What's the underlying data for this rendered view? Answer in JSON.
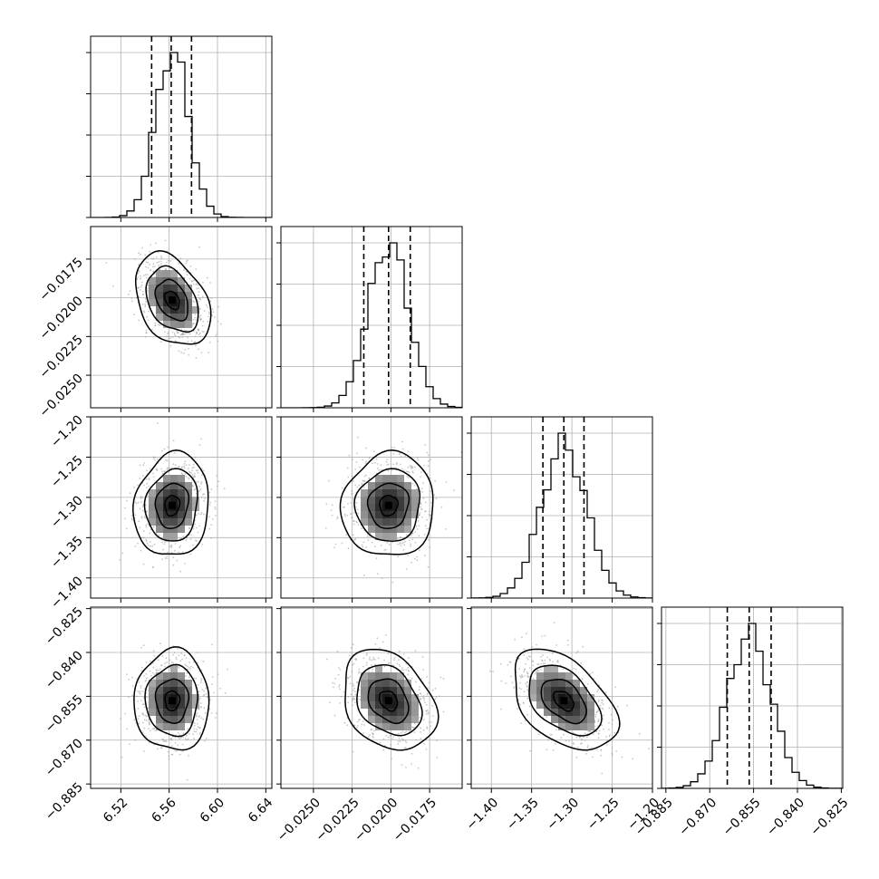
{
  "chart_data": {
    "type": "corner",
    "grid": true,
    "parameters": [
      {
        "ticks": [
          6.52,
          6.56,
          6.6,
          6.64
        ],
        "tick_labels": [
          "6.52",
          "6.56",
          "6.60",
          "6.64"
        ],
        "range": [
          6.495,
          6.645
        ],
        "mean": 6.5625,
        "sd": 0.0135,
        "q": [
          6.5455,
          6.5617,
          6.5785
        ]
      },
      {
        "ticks": [
          -0.025,
          -0.0225,
          -0.02,
          -0.0175
        ],
        "tick_labels": [
          "−0.0250",
          "−0.0225",
          "−0.0200",
          "−0.0175"
        ],
        "range": [
          -0.0271,
          -0.0154
        ],
        "mean": -0.02015,
        "sd": 0.0013,
        "q": [
          -0.02175,
          -0.02015,
          -0.01875
        ]
      },
      {
        "ticks": [
          -1.4,
          -1.35,
          -1.3,
          -1.25,
          -1.2
        ],
        "tick_labels": [
          "−1.40",
          "−1.35",
          "−1.30",
          "−1.25",
          "−1.20"
        ],
        "range": [
          -1.425,
          -1.2
        ],
        "mean": -1.31,
        "sd": 0.028,
        "q": [
          -1.336,
          -1.31,
          -1.285
        ]
      },
      {
        "ticks": [
          -0.885,
          -0.87,
          -0.855,
          -0.84,
          -0.825
        ],
        "tick_labels": [
          "−0.885",
          "−0.870",
          "−0.855",
          "−0.840",
          "−0.825"
        ],
        "range": [
          -0.8865,
          -0.8245
        ],
        "mean": -0.8565,
        "sd": 0.0075,
        "q": [
          -0.864,
          -0.8565,
          -0.849
        ]
      }
    ],
    "correlations": {
      "1-0": -0.35,
      "2-0": 0.1,
      "2-1": 0.05,
      "3-0": 0.0,
      "3-1": -0.28,
      "3-2": -0.45
    },
    "quantile_lines": "dashed",
    "contour_levels": 4,
    "colors": {
      "line": "#000000",
      "density": "#808080",
      "grid": "#b0b0b0"
    }
  }
}
